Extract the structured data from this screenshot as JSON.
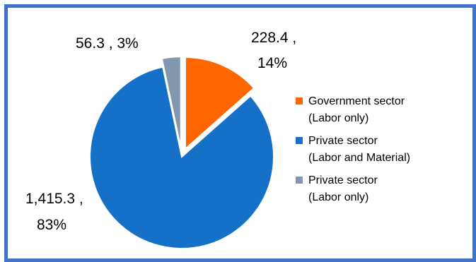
{
  "chart_data": {
    "type": "pie",
    "exploded": true,
    "labels": [
      "Government sector (Labor only)",
      "Private sector (Labor and Material)",
      "Private sector (Labor only)"
    ],
    "values": [
      228.4,
      1415.3,
      56.3
    ],
    "percentages": [
      14,
      83,
      3
    ],
    "colors": [
      "#FF6600",
      "#1570C8",
      "#8497B0"
    ],
    "data_labels": [
      {
        "line1": "228.4 ,",
        "line2": "14%"
      },
      {
        "line1": "1,415.3 ,",
        "line2": "83%"
      },
      {
        "line1": "56.3 , 3%",
        "line2": ""
      }
    ],
    "legend": {
      "placement": "right",
      "items": [
        {
          "line1": "Government sector",
          "line2": "(Labor only)"
        },
        {
          "line1": "Private sector",
          "line2": "(Labor and Material)"
        },
        {
          "line1": "Private sector",
          "line2": "(Labor only)"
        }
      ]
    }
  }
}
